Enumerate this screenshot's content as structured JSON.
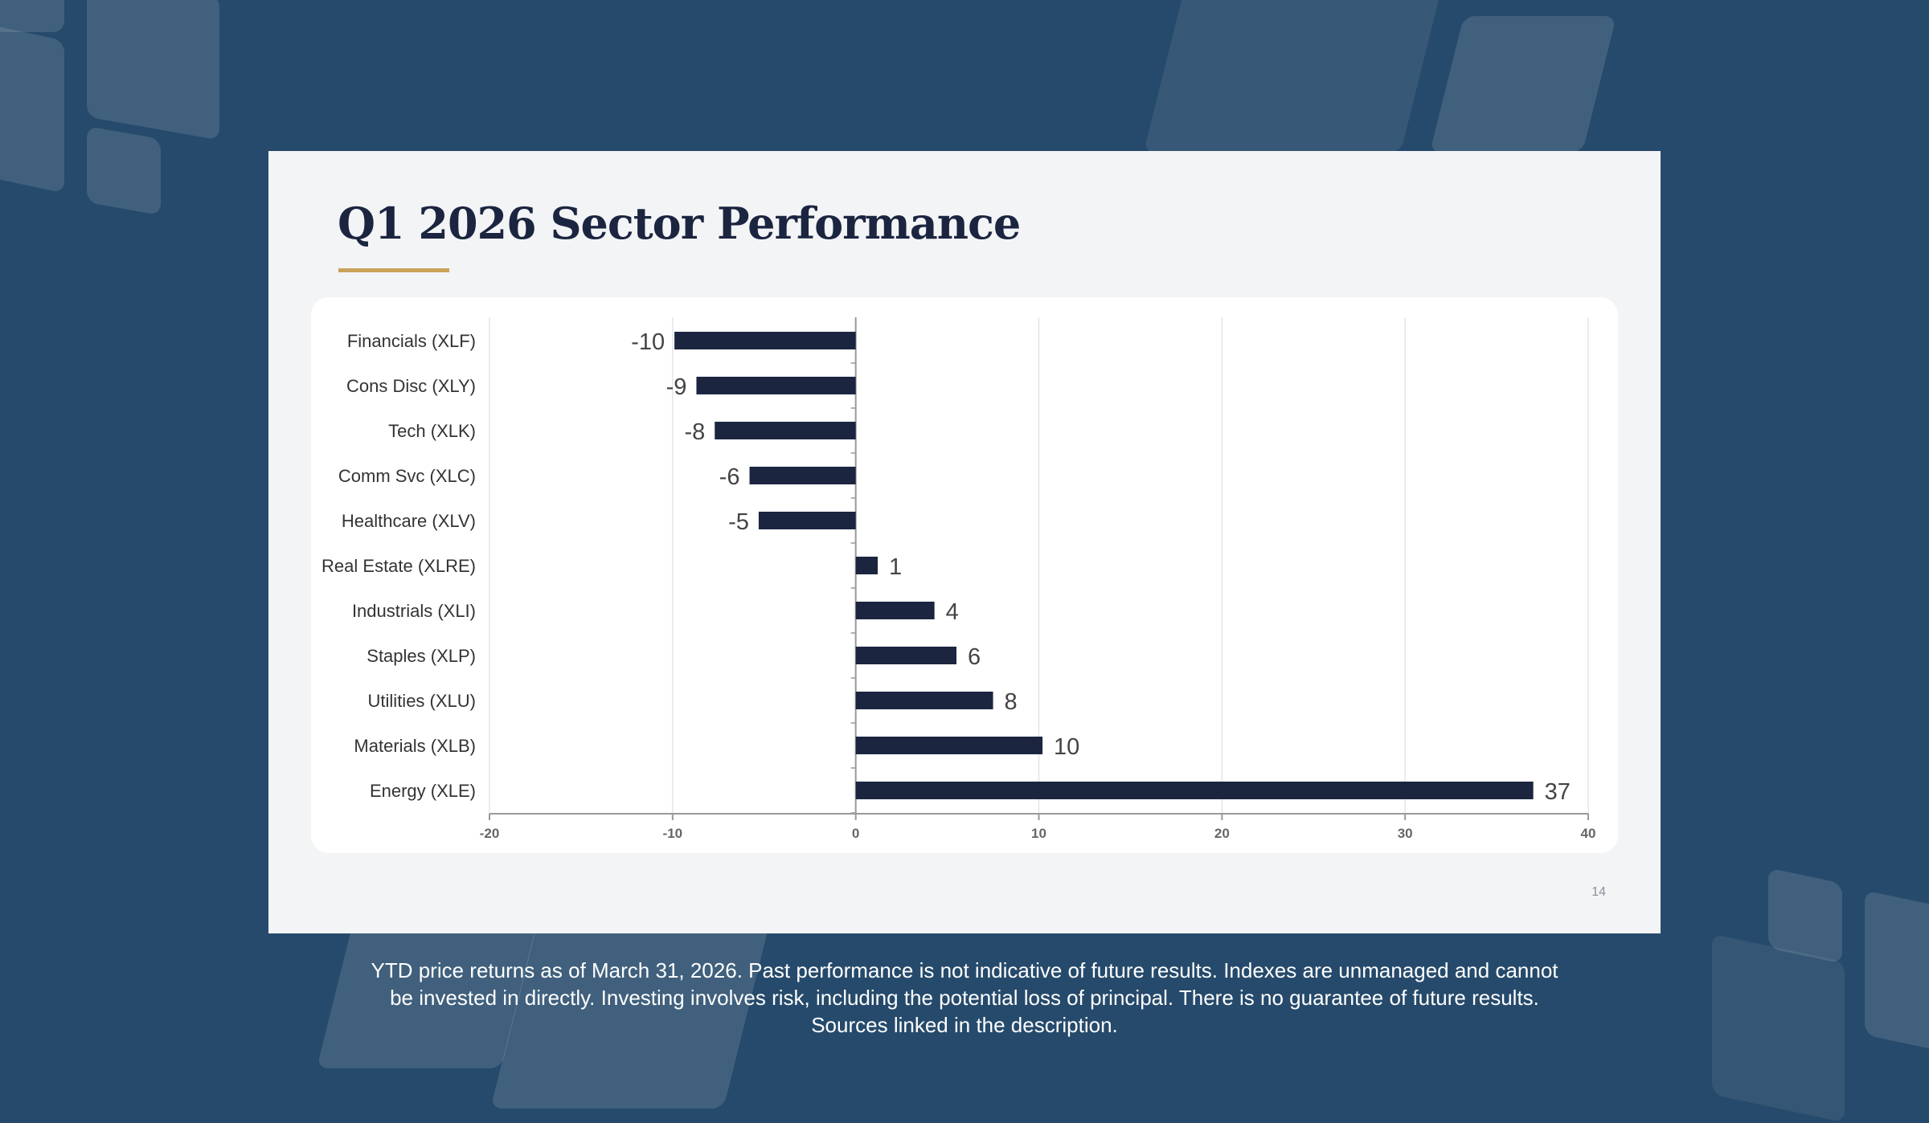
{
  "title": "Q1 2026 Sector Performance",
  "page_number": "14",
  "footer": [
    "YTD price returns as of March 31, 2026. Past performance is not indicative of future results. Indexes are unmanaged and cannot",
    "be invested in directly. Investing involves risk, including the potential loss of principal. There is no guarantee of future results.",
    "Sources linked in the description."
  ],
  "colors": {
    "bar": "#1b2540",
    "accent": "#c9a35a",
    "background": "#264a6b"
  },
  "chart_data": {
    "type": "bar",
    "orientation": "horizontal",
    "title": "Q1 2026 Sector Performance",
    "categories": [
      "Financials (XLF)",
      "Cons Disc (XLY)",
      "Tech (XLK)",
      "Comm Svc (XLC)",
      "Healthcare (XLV)",
      "Real Estate (XLRE)",
      "Industrials (XLI)",
      "Staples (XLP)",
      "Utilities (XLU)",
      "Materials (XLB)",
      "Energy (XLE)"
    ],
    "values": [
      -9.9,
      -8.7,
      -7.7,
      -5.8,
      -5.3,
      1.2,
      4.3,
      5.5,
      7.5,
      10.2,
      37.0
    ],
    "data_labels": [
      "-10",
      "-9",
      "-8",
      "-6",
      "-5",
      "1",
      "4",
      "6",
      "8",
      "10",
      "37"
    ],
    "xlim": [
      -20,
      40
    ],
    "xticks": [
      "-20",
      "-10",
      "0",
      "10",
      "20",
      "30",
      "40"
    ],
    "xtick_values": [
      -20,
      -10,
      0,
      10,
      20,
      30,
      40
    ],
    "grid": true,
    "xlabel": "",
    "ylabel": ""
  }
}
